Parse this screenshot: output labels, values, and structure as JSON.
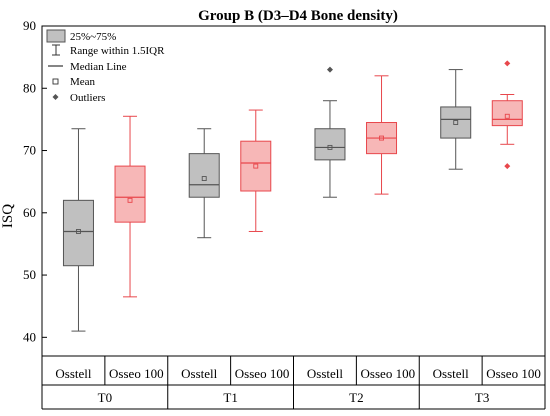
{
  "chart_data": {
    "type": "box",
    "title": "Group B (D3–D4 Bone density)",
    "ylabel": "ISQ",
    "ylim": [
      37,
      90
    ],
    "yticks": [
      40,
      50,
      60,
      70,
      80,
      90
    ],
    "groups": [
      "T0",
      "T1",
      "T2",
      "T3"
    ],
    "devices": [
      "Osstell",
      "Osseo 100"
    ],
    "device_colors": {
      "Osstell": {
        "fill": "#c0c0c0",
        "stroke": "#555555"
      },
      "Osseo 100": {
        "fill": "#f7b7b7",
        "stroke": "#e8474c"
      }
    },
    "outlier_colors": {
      "Osstell": "#555555",
      "Osseo 100": "#e8474c"
    },
    "legend": {
      "box": "25%~75%",
      "range": "Range within 1.5IQR",
      "median": "Median Line",
      "mean": "Mean",
      "outliers": "Outliers"
    },
    "boxes": [
      {
        "group": "T0",
        "device": "Osstell",
        "min": 41,
        "q1": 51.5,
        "median": 57,
        "mean": 57,
        "q3": 62,
        "max": 73.5,
        "outliers": []
      },
      {
        "group": "T0",
        "device": "Osseo 100",
        "min": 46.5,
        "q1": 58.5,
        "median": 62.5,
        "mean": 62,
        "q3": 67.5,
        "max": 75.5,
        "outliers": []
      },
      {
        "group": "T1",
        "device": "Osstell",
        "min": 56,
        "q1": 62.5,
        "median": 64.5,
        "mean": 65.5,
        "q3": 69.5,
        "max": 73.5,
        "outliers": []
      },
      {
        "group": "T1",
        "device": "Osseo 100",
        "min": 57,
        "q1": 63.5,
        "median": 68,
        "mean": 67.5,
        "q3": 71.5,
        "max": 76.5,
        "outliers": []
      },
      {
        "group": "T2",
        "device": "Osstell",
        "min": 62.5,
        "q1": 68.5,
        "median": 70.5,
        "mean": 70.5,
        "q3": 73.5,
        "max": 78,
        "outliers": [
          83
        ]
      },
      {
        "group": "T2",
        "device": "Osseo 100",
        "min": 63,
        "q1": 69.5,
        "median": 72,
        "mean": 72,
        "q3": 74.5,
        "max": 82,
        "outliers": []
      },
      {
        "group": "T3",
        "device": "Osstell",
        "min": 67,
        "q1": 72,
        "median": 75,
        "mean": 74.5,
        "q3": 77,
        "max": 83,
        "outliers": []
      },
      {
        "group": "T3",
        "device": "Osseo 100",
        "min": 71,
        "q1": 74,
        "median": 75,
        "mean": 75.5,
        "q3": 78,
        "max": 79,
        "outliers": [
          84,
          67.5
        ]
      }
    ]
  }
}
